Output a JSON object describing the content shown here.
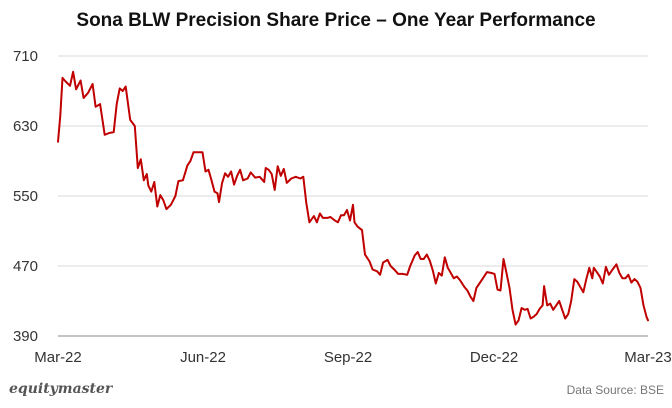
{
  "chart_data": {
    "type": "line",
    "title": "Sona BLW Precision Share Price – One Year Performance",
    "xlabel": "",
    "ylabel": "",
    "ylim": [
      390,
      710
    ],
    "y_ticks": [
      390,
      470,
      550,
      630,
      710
    ],
    "x_ticks": [
      "Mar-22",
      "Jun-22",
      "Sep-22",
      "Dec-22",
      "Mar-23"
    ],
    "grid": "horizontal",
    "line_color": "#c00000",
    "series": [
      {
        "values": [
          [
            0,
            612
          ],
          [
            1.5,
            642
          ],
          [
            3,
            685
          ],
          [
            5,
            681
          ],
          [
            8,
            676
          ],
          [
            10,
            692
          ],
          [
            12,
            672
          ],
          [
            15,
            682
          ],
          [
            17,
            662
          ],
          [
            20,
            668
          ],
          [
            23,
            678
          ],
          [
            25,
            652
          ],
          [
            28,
            655
          ],
          [
            31,
            620
          ],
          [
            34,
            622
          ],
          [
            37,
            623
          ],
          [
            39,
            655
          ],
          [
            41,
            673
          ],
          [
            43,
            670
          ],
          [
            45,
            675
          ],
          [
            48,
            637
          ],
          [
            51,
            630
          ],
          [
            53,
            582
          ],
          [
            55,
            592
          ],
          [
            57,
            568
          ],
          [
            59,
            575
          ],
          [
            60,
            562
          ],
          [
            62,
            555
          ],
          [
            64,
            566
          ],
          [
            66,
            538
          ],
          [
            68,
            551
          ],
          [
            70,
            545
          ],
          [
            72,
            535
          ],
          [
            75,
            540
          ],
          [
            78,
            550
          ],
          [
            80,
            567
          ],
          [
            83,
            568
          ],
          [
            86,
            585
          ],
          [
            88,
            590
          ],
          [
            90,
            600
          ],
          [
            93,
            600
          ],
          [
            96,
            600
          ],
          [
            98,
            578
          ],
          [
            100,
            580
          ],
          [
            102,
            568
          ],
          [
            104,
            555
          ],
          [
            106,
            553
          ],
          [
            107,
            543
          ],
          [
            109,
            565
          ],
          [
            111,
            576
          ],
          [
            113,
            572
          ],
          [
            115,
            578
          ],
          [
            117,
            563
          ],
          [
            119,
            573
          ],
          [
            121,
            580
          ],
          [
            123,
            568
          ],
          [
            126,
            570
          ],
          [
            128,
            577
          ],
          [
            131,
            571
          ],
          [
            134,
            572
          ],
          [
            137,
            566
          ],
          [
            138,
            582
          ],
          [
            140,
            580
          ],
          [
            142,
            575
          ],
          [
            144,
            557
          ],
          [
            146,
            584
          ],
          [
            148,
            573
          ],
          [
            150,
            581
          ],
          [
            152,
            565
          ],
          [
            155,
            570
          ],
          [
            158,
            572
          ],
          [
            161,
            570
          ],
          [
            163,
            572
          ],
          [
            165,
            542
          ],
          [
            167,
            520
          ],
          [
            170,
            527
          ],
          [
            172,
            520
          ],
          [
            174,
            530
          ],
          [
            176,
            525
          ],
          [
            179,
            525
          ],
          [
            181,
            526
          ],
          [
            184,
            522
          ],
          [
            186,
            520
          ],
          [
            188,
            528
          ],
          [
            190,
            528
          ],
          [
            192,
            534
          ],
          [
            194,
            522
          ],
          [
            196,
            540
          ],
          [
            197,
            520
          ],
          [
            199,
            515
          ],
          [
            202,
            511
          ],
          [
            204,
            483
          ],
          [
            207,
            475
          ],
          [
            209,
            466
          ],
          [
            212,
            464
          ],
          [
            214,
            460
          ],
          [
            216,
            474
          ],
          [
            219,
            477
          ],
          [
            221,
            470
          ],
          [
            224,
            465
          ],
          [
            226,
            461
          ],
          [
            229,
            461
          ],
          [
            232,
            460
          ],
          [
            234,
            470
          ],
          [
            237,
            482
          ],
          [
            239,
            486
          ],
          [
            241,
            478
          ],
          [
            243,
            478
          ],
          [
            245,
            483
          ],
          [
            247,
            476
          ],
          [
            249,
            465
          ],
          [
            251,
            450
          ],
          [
            253,
            462
          ],
          [
            255,
            459
          ],
          [
            257,
            480
          ],
          [
            259,
            468
          ],
          [
            261,
            462
          ],
          [
            263,
            456
          ],
          [
            265,
            458
          ],
          [
            267,
            454
          ],
          [
            270,
            446
          ],
          [
            272,
            442
          ],
          [
            274,
            435
          ],
          [
            276,
            430
          ],
          [
            278,
            445
          ],
          [
            280,
            450
          ],
          [
            282,
            455
          ],
          [
            285,
            463
          ],
          [
            288,
            462
          ],
          [
            290,
            461
          ],
          [
            292,
            443
          ],
          [
            294,
            442
          ],
          [
            296,
            478
          ],
          [
            298,
            462
          ],
          [
            300,
            445
          ],
          [
            302,
            420
          ],
          [
            304,
            403
          ],
          [
            306,
            408
          ],
          [
            308,
            422
          ],
          [
            310,
            420
          ],
          [
            312,
            421
          ],
          [
            314,
            410
          ],
          [
            316,
            412
          ],
          [
            318,
            415
          ],
          [
            320,
            421
          ],
          [
            322,
            425
          ],
          [
            323,
            447
          ],
          [
            325,
            425
          ],
          [
            327,
            427
          ],
          [
            329,
            420
          ],
          [
            331,
            425
          ],
          [
            333,
            430
          ],
          [
            335,
            420
          ],
          [
            337,
            410
          ],
          [
            339,
            415
          ],
          [
            341,
            430
          ],
          [
            343,
            455
          ],
          [
            345,
            452
          ],
          [
            347,
            446
          ],
          [
            349,
            440
          ],
          [
            351,
            455
          ],
          [
            353,
            468
          ],
          [
            355,
            456
          ],
          [
            356,
            468
          ],
          [
            358,
            463
          ],
          [
            360,
            458
          ],
          [
            362,
            450
          ],
          [
            364,
            469
          ],
          [
            366,
            460
          ],
          [
            368,
            465
          ],
          [
            371,
            472
          ],
          [
            373,
            462
          ],
          [
            375,
            456
          ],
          [
            377,
            456
          ],
          [
            379,
            460
          ],
          [
            381,
            451
          ],
          [
            383,
            455
          ],
          [
            385,
            452
          ],
          [
            387,
            445
          ],
          [
            389,
            425
          ],
          [
            391,
            412
          ],
          [
            392,
            408
          ]
        ]
      }
    ]
  },
  "brand": "equitymaster",
  "source": "Data Source: BSE"
}
